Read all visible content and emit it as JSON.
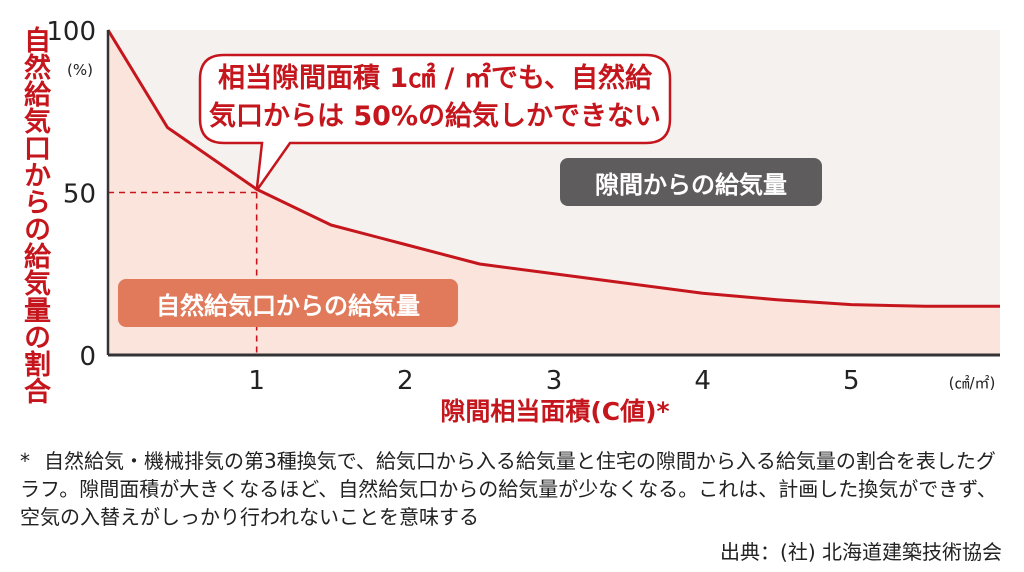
{
  "chart_data": {
    "type": "area",
    "x": [
      0,
      0.4,
      1.0,
      1.5,
      2.0,
      2.5,
      3.0,
      3.5,
      4.0,
      4.5,
      5.0,
      5.5,
      6.0
    ],
    "series": [
      {
        "name": "自然給気口からの給気量",
        "values": [
          100,
          70,
          51,
          40,
          34,
          28,
          25,
          22,
          19,
          17,
          15.5,
          15,
          15
        ]
      }
    ],
    "upper_region_label": "隙間からの給気量",
    "xlabel": "隙間相当面積(C値)*",
    "xunit": "(㎠/㎡)",
    "ylabel": "自然給気口からの給気量の割合",
    "yunit": "(%)",
    "xticks": [
      "1",
      "2",
      "3",
      "4",
      "5"
    ],
    "yticks": [
      "0",
      "50",
      "100"
    ],
    "xlim": [
      0,
      6
    ],
    "ylim": [
      0,
      100
    ],
    "highlight": {
      "x": 1,
      "y": 50
    },
    "colors": {
      "line": "#c4161c",
      "lower_fill": "#fbe4dc",
      "upper_fill": "#f5f1ef",
      "axis": "#c4161c"
    }
  },
  "callout": {
    "line1": "相当隙間面積 1㎠ / ㎡でも、自然給",
    "line2": "気口からは 50%の給気しかできない"
  },
  "footnote": {
    "star": "*",
    "text": "自然給気・機械排気の第3種換気で、給気口から入る給気量と住宅の隙間から入る給気量の割合を表したグラフ。隙間面積が大きくなるほど、自然給気口からの給気量が少なくなる。これは、計画した換気ができず、空気の入替えがしっかり行われないことを意味する"
  },
  "source": "出典：(社) 北海道建築技術協会"
}
